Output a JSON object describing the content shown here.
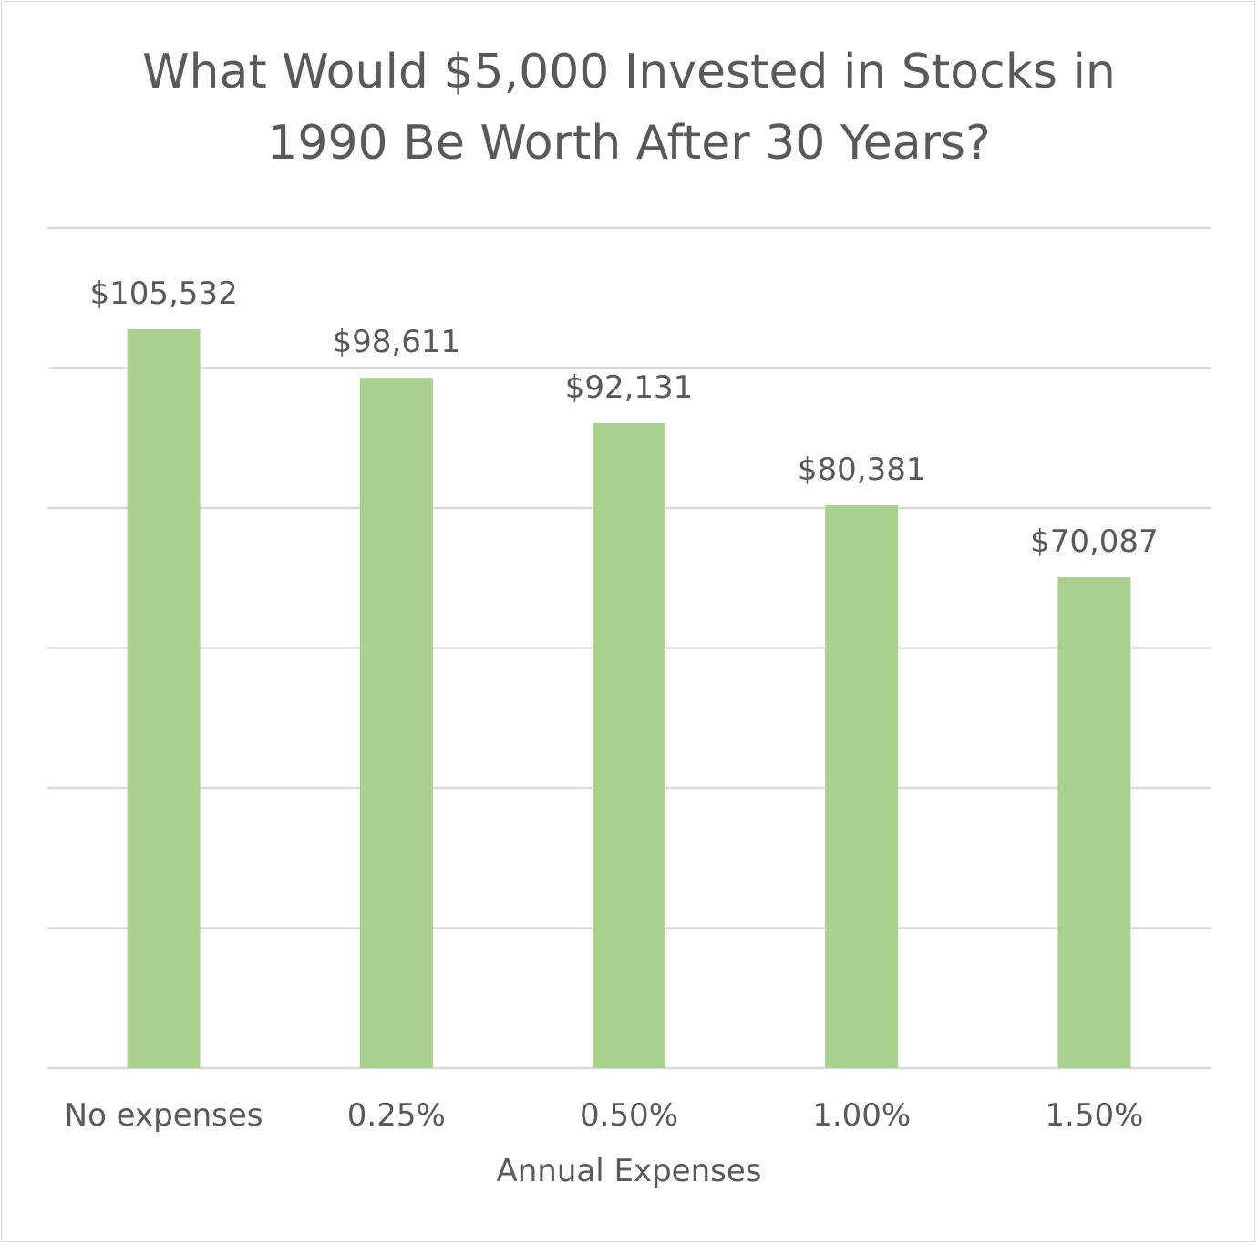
{
  "chart_data": {
    "type": "bar",
    "title": "What Would $5,000 Invested in Stocks in\n1990 Be Worth After 30 Years?",
    "xlabel": "Annual Expenses",
    "ylabel": "",
    "categories": [
      "No expenses",
      "0.25%",
      "0.50%",
      "1.00%",
      "1.50%"
    ],
    "values": [
      105532,
      98611,
      92131,
      80381,
      70087
    ],
    "data_labels": [
      "$105,532",
      "$98,611",
      "$92,131",
      "$80,381",
      "$70,087"
    ],
    "ylim": [
      0,
      120000
    ],
    "y_axis_labels_shown": false,
    "grid": true,
    "legend": "none",
    "colors": {
      "bar": "#a9d18e",
      "gridline": "#d9d9d9",
      "text": "#595959",
      "border": "#d9d9d9"
    }
  }
}
